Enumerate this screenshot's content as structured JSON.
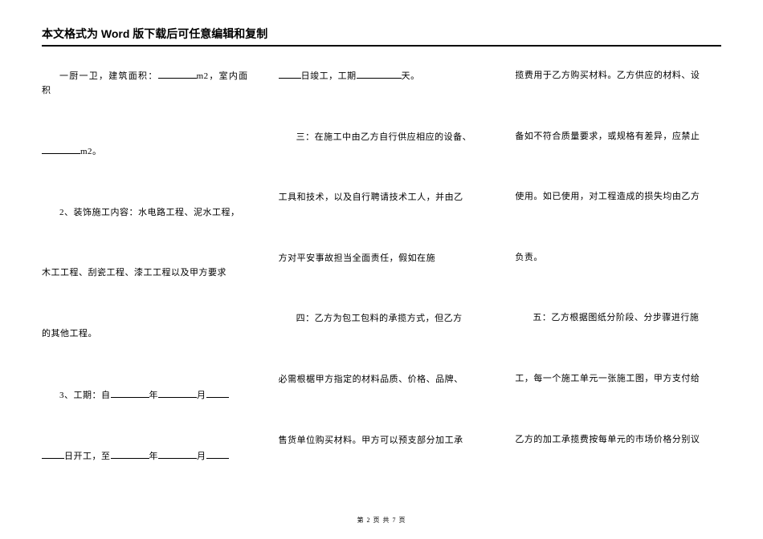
{
  "header": "本文格式为 Word 版下载后可任意编辑和复制",
  "col1": {
    "p1_a": "一厨一卫，建筑面积：",
    "p1_b": "m2，室内面积",
    "p2_a": "",
    "p2_b": "m2。",
    "p3": "2、装饰施工内容：水电路工程、泥水工程，",
    "p4": "木工工程、刮瓷工程、漆工工程以及甲方要求",
    "p5": "的其他工程。",
    "p6_a": "3、工期：自",
    "p6_b": "年",
    "p6_c": "月",
    "p7_a": "日开工，至",
    "p7_b": "年",
    "p7_c": "月"
  },
  "col2": {
    "p1_a": "日竣工，工期",
    "p1_b": "天。",
    "p2": "三：在施工中由乙方自行供应相应的设备、",
    "p3": "工具和技术，以及自行聘请技术工人，并由乙",
    "p4": "方对平安事故担当全面责任，假如在施",
    "p5": "四：乙方为包工包料的承揽方式，但乙方",
    "p6": "必需根椐甲方指定的材料品质、价格、品牌、",
    "p7": "售货单位购买材料。甲方可以预支部分加工承"
  },
  "col3": {
    "p1": "揽费用于乙方购买材料。乙方供应的材料、设",
    "p2": "备如不符合质量要求，或规格有差异，应禁止",
    "p3": "使用。如已使用，对工程造成的损失均由乙方",
    "p4": "负责。",
    "p5": "五：乙方根据图纸分阶段、分步骤进行施",
    "p6": "工，每一个施工单元一张施工图，甲方支付给",
    "p7": "乙方的加工承揽费按每单元的市场价格分别议"
  },
  "footer_a": "第 ",
  "footer_page": "2",
  "footer_b": " 页 共 ",
  "footer_total": "7",
  "footer_c": " 页"
}
